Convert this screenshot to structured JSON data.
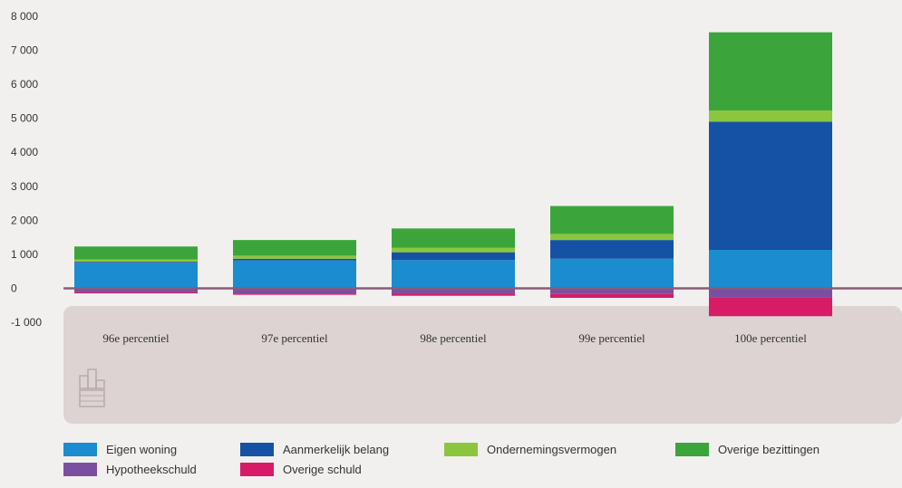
{
  "colors": {
    "eigen_woning": "#1a8ccf",
    "aanmerkelijk_belang": "#1552a6",
    "ondernemingsvermogen": "#8cc63e",
    "overige_bezittingen": "#3ba53b",
    "hypotheekschuld": "#7b4fa0",
    "overige_schuld": "#d81b66",
    "zero_line": "#8a5c78",
    "category_band": "#ddd3d3",
    "page_background": "#f1f0ef"
  },
  "chart_data": {
    "type": "bar",
    "stacked": true,
    "title": "",
    "xlabel": "",
    "ylabel": "",
    "ylim": [
      -1000,
      8000
    ],
    "yticks": [
      8000,
      7000,
      6000,
      5000,
      4000,
      3000,
      2000,
      1000,
      0,
      -1000
    ],
    "ytick_labels": [
      "8 000",
      "7 000",
      "6 000",
      "5 000",
      "4 000",
      "3 000",
      "2 000",
      "1 000",
      "0",
      "-1 000"
    ],
    "grid": false,
    "legend_position": "bottom",
    "categories": [
      "96e percentiel",
      "97e percentiel",
      "98e percentiel",
      "99e percentiel",
      "100e percentiel"
    ],
    "series": [
      {
        "name": "Eigen woning",
        "color_key": "eigen_woning",
        "values": [
          750,
          820,
          830,
          870,
          1130
        ]
      },
      {
        "name": "Aanmerkelijk belang",
        "color_key": "aanmerkelijk_belang",
        "values": [
          30,
          50,
          230,
          550,
          3770
        ]
      },
      {
        "name": "Ondernemingsvermogen",
        "color_key": "ondernemingsvermogen",
        "values": [
          70,
          90,
          130,
          180,
          330
        ]
      },
      {
        "name": "Overige bezittingen",
        "color_key": "overige_bezittingen",
        "values": [
          380,
          460,
          570,
          820,
          2300
        ]
      },
      {
        "name": "Hypotheekschuld",
        "color_key": "hypotheekschuld",
        "values": [
          -120,
          -150,
          -160,
          -170,
          -270
        ]
      },
      {
        "name": "Overige schuld",
        "color_key": "overige_schuld",
        "values": [
          -30,
          -40,
          -60,
          -110,
          -550
        ]
      }
    ]
  }
}
